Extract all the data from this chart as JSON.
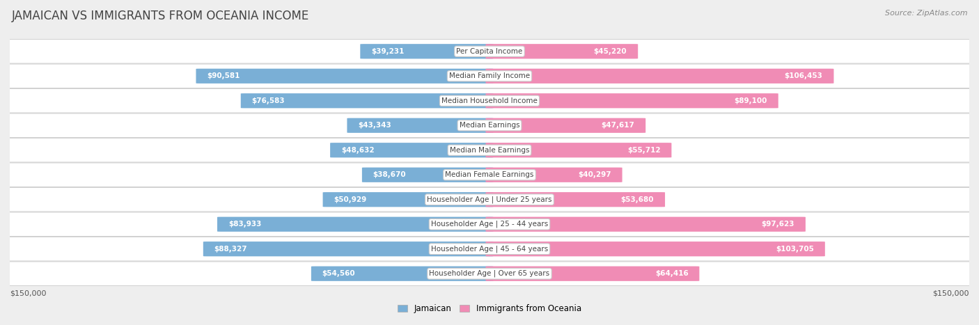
{
  "title": "JAMAICAN VS IMMIGRANTS FROM OCEANIA INCOME",
  "source": "Source: ZipAtlas.com",
  "categories": [
    "Per Capita Income",
    "Median Family Income",
    "Median Household Income",
    "Median Earnings",
    "Median Male Earnings",
    "Median Female Earnings",
    "Householder Age | Under 25 years",
    "Householder Age | 25 - 44 years",
    "Householder Age | 45 - 64 years",
    "Householder Age | Over 65 years"
  ],
  "jamaican_values": [
    39231,
    90581,
    76583,
    43343,
    48632,
    38670,
    50929,
    83933,
    88327,
    54560
  ],
  "oceania_values": [
    45220,
    106453,
    89100,
    47617,
    55712,
    40297,
    53680,
    97623,
    103705,
    64416
  ],
  "jamaican_labels": [
    "$39,231",
    "$90,581",
    "$76,583",
    "$43,343",
    "$48,632",
    "$38,670",
    "$50,929",
    "$83,933",
    "$88,327",
    "$54,560"
  ],
  "oceania_labels": [
    "$45,220",
    "$106,453",
    "$89,100",
    "$47,617",
    "$55,712",
    "$40,297",
    "$53,680",
    "$97,623",
    "$103,705",
    "$64,416"
  ],
  "jamaican_color": "#7aafd6",
  "oceania_color": "#f08cb5",
  "max_value": 150000,
  "axis_label": "$150,000",
  "background_color": "#eeeeee",
  "row_bg_color": "#ffffff",
  "row_border_color": "#cccccc",
  "label_inside_color": "#ffffff",
  "label_outside_color": "#555555",
  "cat_label_color": "#444444",
  "title_color": "#444444",
  "source_color": "#888888",
  "legend_jam": "Jamaican",
  "legend_oce": "Immigrants from Oceania"
}
